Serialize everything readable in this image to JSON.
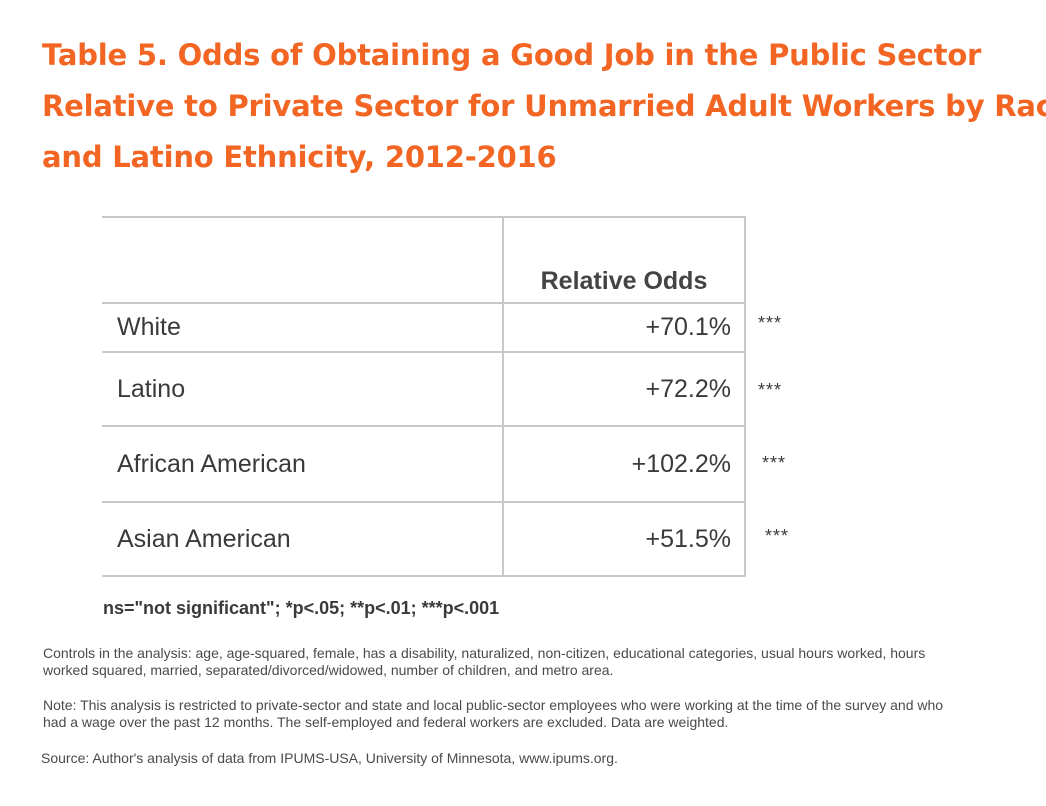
{
  "title": {
    "line1": "Table 5. Odds of Obtaining a Good Job in the Public Sector",
    "line2": "Relative to Private Sector for Unmarried Adult Workers by Race",
    "line3": "and Latino Ethnicity, 2012-2016"
  },
  "table": {
    "header": "Relative Odds",
    "rows": [
      {
        "label": "White",
        "value": "+70.1%",
        "sig": "***"
      },
      {
        "label": "Latino",
        "value": "+72.2%",
        "sig": "***"
      },
      {
        "label": "African American",
        "value": "+102.2%",
        "sig": "***"
      },
      {
        "label": "Asian American",
        "value": "+51.5%",
        "sig": "***"
      }
    ]
  },
  "legend": "ns=\"not significant\"; *p<.05; **p<.01; ***p<.001",
  "controls_note": "Controls in the analysis: age, age-squared, female, has a disability, naturalized, non-citizen, educational categories, usual hours worked, hours worked squared, married, separated/divorced/widowed, number of children, and metro area.",
  "restriction_note": "Note: This analysis is restricted to private-sector and state and local public-sector employees who were working at the time of the survey and who had a wage over the past 12 months. The self-employed and federal workers are excluded. Data are weighted.",
  "source": "Source: Author's analysis of data from IPUMS-USA, University of Minnesota, www.ipums.org."
}
